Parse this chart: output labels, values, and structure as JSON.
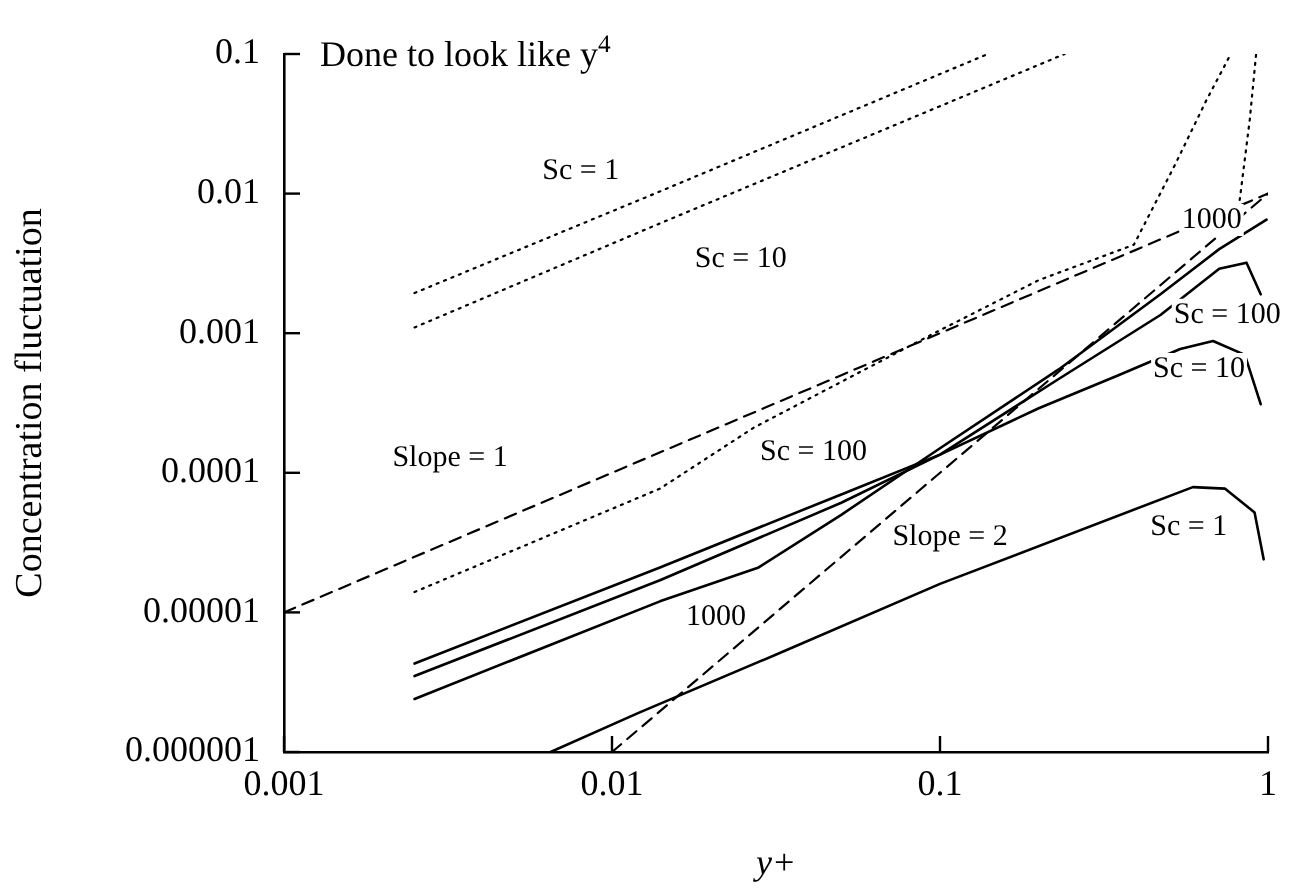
{
  "chart_data": {
    "type": "line",
    "title": "Done to look like y$^{4}$",
    "xlabel": "y+",
    "ylabel": "Concentration fluctuation",
    "log": "xy",
    "grid": false,
    "legend": false,
    "marker": "none",
    "xlim": [
      0.001,
      1
    ],
    "ylim": [
      1e-06,
      0.1
    ],
    "xticks": [
      0.001,
      0.01,
      0.1,
      1
    ],
    "yticks": [
      {
        "value": 1e-06,
        "label": "0.000001"
      },
      {
        "value": 1e-05,
        "label": "0.00001"
      },
      0.0001,
      0.001,
      0.01,
      0.1
    ],
    "series": [
      {
        "name": "Sc = 1",
        "color": "#000000",
        "line_style": "dotted",
        "x": [
          0.0025,
          0.0135,
          0.14
        ],
        "values": [
          0.00194,
          0.01,
          0.1
        ]
      },
      {
        "name": "Sc = 10",
        "color": "#000000",
        "line_style": "dotted",
        "x": [
          0.0025,
          0.0135,
          0.24
        ],
        "values": [
          0.0011,
          0.0059,
          0.1
        ]
      },
      {
        "name": "Sc = 100",
        "color": "#000000",
        "line_style": "dotted",
        "x": [
          0.0025,
          0.014,
          0.027,
          0.096,
          0.2,
          0.39,
          0.52,
          0.65,
          0.77
        ],
        "values": [
          1.4e-05,
          7.7e-05,
          0.00021,
          0.001,
          0.0024,
          0.0043,
          0.016,
          0.047,
          0.1
        ]
      },
      {
        "name": "1000",
        "color": "#000000",
        "line_style": "dotted",
        "x": [
          0.82,
          0.88,
          0.92
        ],
        "values": [
          0.009,
          0.034,
          0.1
        ]
      },
      {
        "name": "Slope = 1",
        "color": "#000000",
        "line_style": "dashed",
        "x": [
          0.001,
          1
        ],
        "values": [
          1e-05,
          0.01
        ]
      },
      {
        "name": "Slope = 2",
        "color": "#000000",
        "line_style": "dashed",
        "x": [
          0.01,
          1
        ],
        "values": [
          1e-06,
          0.01
        ]
      },
      {
        "name": "Sc = 10",
        "color": "#000000",
        "line_style": "solid",
        "x": [
          0.0025,
          0.014,
          0.05,
          0.1,
          0.2,
          0.35,
          0.54,
          0.68,
          0.85,
          0.95
        ],
        "values": [
          4.3e-06,
          2.1e-05,
          7e-05,
          0.000135,
          0.00029,
          0.0005,
          0.00077,
          0.00088,
          0.0007,
          0.00031
        ]
      },
      {
        "name": "Sc = 100",
        "color": "#000000",
        "line_style": "solid",
        "x": [
          0.0025,
          0.014,
          0.05,
          0.1,
          0.23,
          0.47,
          0.71,
          0.86,
          0.95
        ],
        "values": [
          3.5e-06,
          1.7e-05,
          6.1e-05,
          0.000135,
          0.00047,
          0.00135,
          0.0029,
          0.0032,
          0.0019
        ]
      },
      {
        "name": "1000",
        "color": "#000000",
        "line_style": "solid",
        "x": [
          0.0025,
          0.014,
          0.028,
          0.05,
          0.1,
          0.23,
          0.47,
          0.71,
          0.99
        ],
        "values": [
          2.4e-06,
          1.2e-05,
          2.1e-05,
          5e-05,
          0.00015,
          0.00055,
          0.0019,
          0.004,
          0.0065
        ]
      },
      {
        "name": "Sc = 1",
        "color": "#000000",
        "line_style": "solid",
        "x": [
          0.0065,
          0.012,
          0.033,
          0.1,
          0.59,
          0.74,
          0.91,
          0.97
        ],
        "values": [
          1e-06,
          1.9e-06,
          5.2e-06,
          1.6e-05,
          7.9e-05,
          7.7e-05,
          5.2e-05,
          2.4e-05
        ]
      }
    ]
  }
}
